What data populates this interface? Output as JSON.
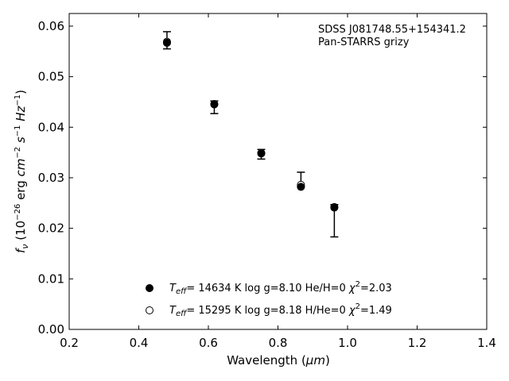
{
  "chart_data": {
    "type": "scatter",
    "xlim": [
      0.2,
      1.4
    ],
    "ylim": [
      0.0,
      0.0625
    ],
    "x_ticks": [
      0.2,
      0.4,
      0.6,
      0.8,
      1.0,
      1.2,
      1.4
    ],
    "x_tick_labels": [
      "0.2",
      "0.4",
      "0.6",
      "0.8",
      "1.0",
      "1.2",
      "1.4"
    ],
    "y_ticks": [
      0.0,
      0.01,
      0.02,
      0.03,
      0.04,
      0.05,
      0.06
    ],
    "y_tick_labels": [
      "0.00",
      "0.01",
      "0.02",
      "0.03",
      "0.04",
      "0.05",
      "0.06"
    ],
    "xlabel": {
      "text": "Wavelength (",
      "unit": "μm",
      "close": ")"
    },
    "ylabel": {
      "symbol": "f",
      "symbol_sub": "ν",
      "open": " (10",
      "exp1": "−26",
      "mid": " erg ",
      "cm": "cm",
      "exp2": "−2",
      "s": " s",
      "exp3": "−1",
      "hz": " Hz",
      "exp4": "−1",
      "close": ")"
    },
    "annotation": [
      "SDSS J081748.55+154341.2",
      "Pan-STARRS grizy"
    ],
    "grid": false,
    "legend_placement": "lower-center",
    "observed": [
      {
        "x": 0.481,
        "y": 0.0572,
        "yerr_low": 0.0555,
        "yerr_high": 0.0589
      },
      {
        "x": 0.617,
        "y": 0.0446,
        "yerr_low": 0.0427,
        "yerr_high": 0.0452
      },
      {
        "x": 0.752,
        "y": 0.0349,
        "yerr_low": 0.0337,
        "yerr_high": 0.0356
      },
      {
        "x": 0.866,
        "y": 0.0285,
        "yerr_low": 0.0283,
        "yerr_high": 0.0311
      },
      {
        "x": 0.962,
        "y": 0.0242,
        "yerr_low": 0.0183,
        "yerr_high": 0.0247
      }
    ],
    "series": [
      {
        "marker": "filled",
        "legend": {
          "T": "T",
          "T_sub": "eff",
          "rest": "= 14634 K  log g=8.10  He/H=0  ",
          "chi": "χ",
          "chi_sup": "2",
          "chi_val": "=2.03"
        },
        "x": [
          0.481,
          0.617,
          0.752,
          0.866,
          0.962
        ],
        "y": [
          0.0567,
          0.0445,
          0.0348,
          0.0282,
          0.0241
        ]
      },
      {
        "marker": "open",
        "legend": {
          "T": "T",
          "T_sub": "eff",
          "rest": "= 15295 K  log g=8.18  H/He=0  ",
          "chi": "χ",
          "chi_sup": "2",
          "chi_val": "=1.49"
        },
        "x": [
          0.481,
          0.617,
          0.752,
          0.866,
          0.962
        ],
        "y": [
          0.0569,
          0.0446,
          0.0349,
          0.0286,
          0.0242
        ]
      }
    ]
  }
}
